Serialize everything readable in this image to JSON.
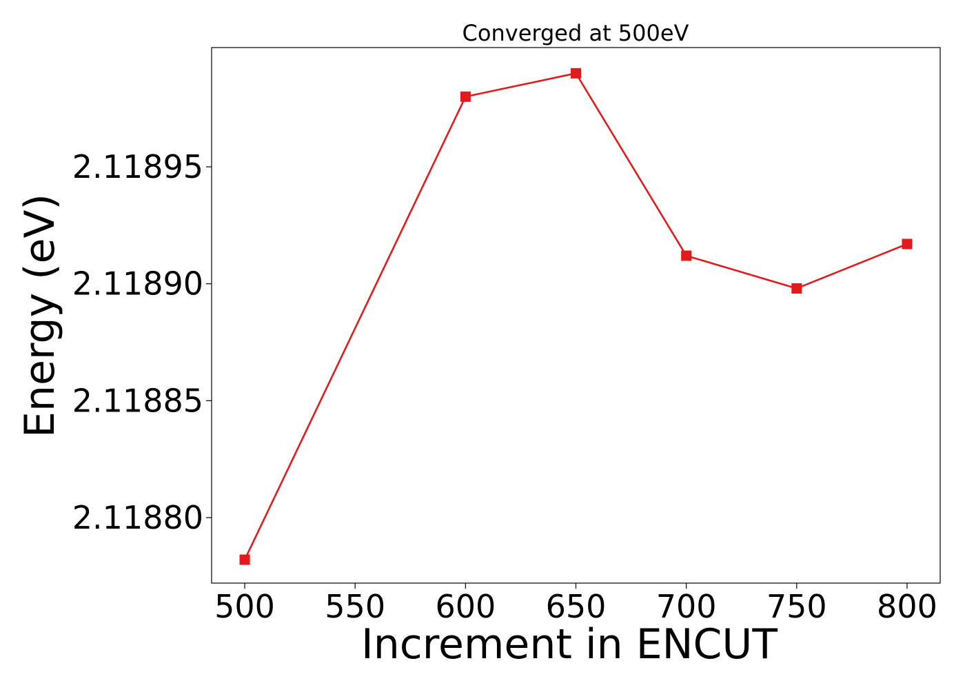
{
  "chart_data": {
    "type": "line",
    "title": "Converged at 500eV",
    "xlabel": "Increment in ENCUT",
    "ylabel": "Energy (eV)",
    "x": [
      500,
      600,
      650,
      700,
      750,
      800
    ],
    "series": [
      {
        "values": [
          2.118782,
          2.11898,
          2.11899,
          2.118912,
          2.118898,
          2.118917
        ],
        "color": "#e31a1c",
        "marker": "square"
      }
    ],
    "xticks": [
      500,
      550,
      600,
      650,
      700,
      750,
      800
    ],
    "xtick_labels": [
      "500",
      "550",
      "600",
      "650",
      "700",
      "750",
      "800"
    ],
    "yticks": [
      2.1188,
      2.11885,
      2.1189,
      2.11895
    ],
    "ytick_labels": [
      "2.11880",
      "2.11885",
      "2.11890",
      "2.11895"
    ],
    "xlim": [
      485,
      815
    ],
    "ylim": [
      2.118772,
      2.119001
    ],
    "grid": false,
    "legend": "none"
  }
}
